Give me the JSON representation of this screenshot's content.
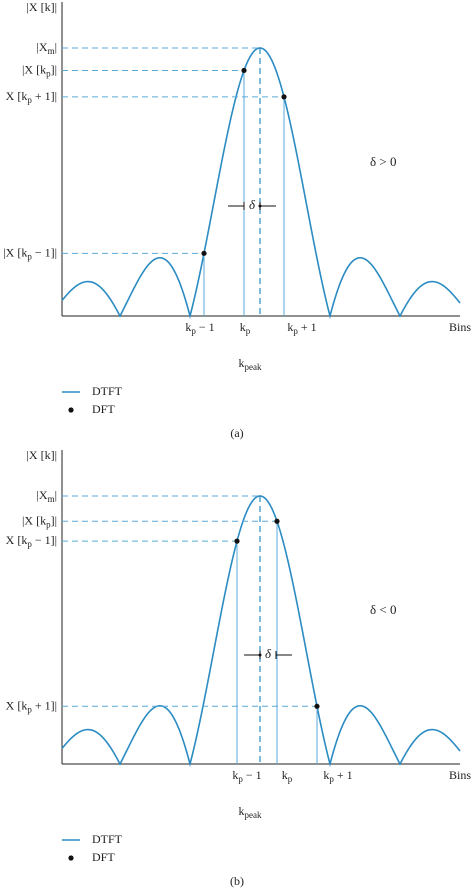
{
  "panels": [
    {
      "y_axis_label": [
        "|X [k]|"
      ],
      "level_labels": [
        [
          "|X",
          "m",
          "|"
        ],
        [
          "|X [k",
          "p",
          "]|"
        ],
        [
          "X [k",
          "p",
          " + 1]|"
        ],
        [
          "|X [k",
          "p",
          " − 1]|"
        ]
      ],
      "delta_note": [
        "δ > 0"
      ],
      "delta": [
        "δ"
      ],
      "bin_labels": [
        [
          "k",
          "p",
          " − 1"
        ],
        [
          "k",
          "p"
        ],
        [
          "k",
          "p",
          " + 1"
        ]
      ],
      "x_axis_label": [
        "Bins"
      ],
      "peak_label": [
        "k",
        "peak"
      ],
      "legend": [
        [
          "DTFT"
        ],
        [
          "DFT"
        ]
      ],
      "caption": [
        "(a)"
      ]
    },
    {
      "y_axis_label": [
        "|X [k]|"
      ],
      "level_labels": [
        [
          "|X",
          "m",
          "|"
        ],
        [
          "|X [k",
          "p",
          "]|"
        ],
        [
          "X [k",
          "p",
          " − 1]|"
        ],
        [
          "X [k",
          "p",
          " + 1]|"
        ]
      ],
      "delta_note": [
        "δ < 0"
      ],
      "delta": [
        "δ"
      ],
      "bin_labels": [
        [
          "k",
          "p",
          " − 1"
        ],
        [
          "k",
          "p"
        ],
        [
          "k",
          "p",
          " + 1"
        ]
      ],
      "x_axis_label": [
        "Bins"
      ],
      "peak_label": [
        "k",
        "peak"
      ],
      "legend": [
        [
          "DTFT"
        ],
        [
          "DFT"
        ]
      ],
      "caption": [
        "(b)"
      ]
    }
  ]
}
